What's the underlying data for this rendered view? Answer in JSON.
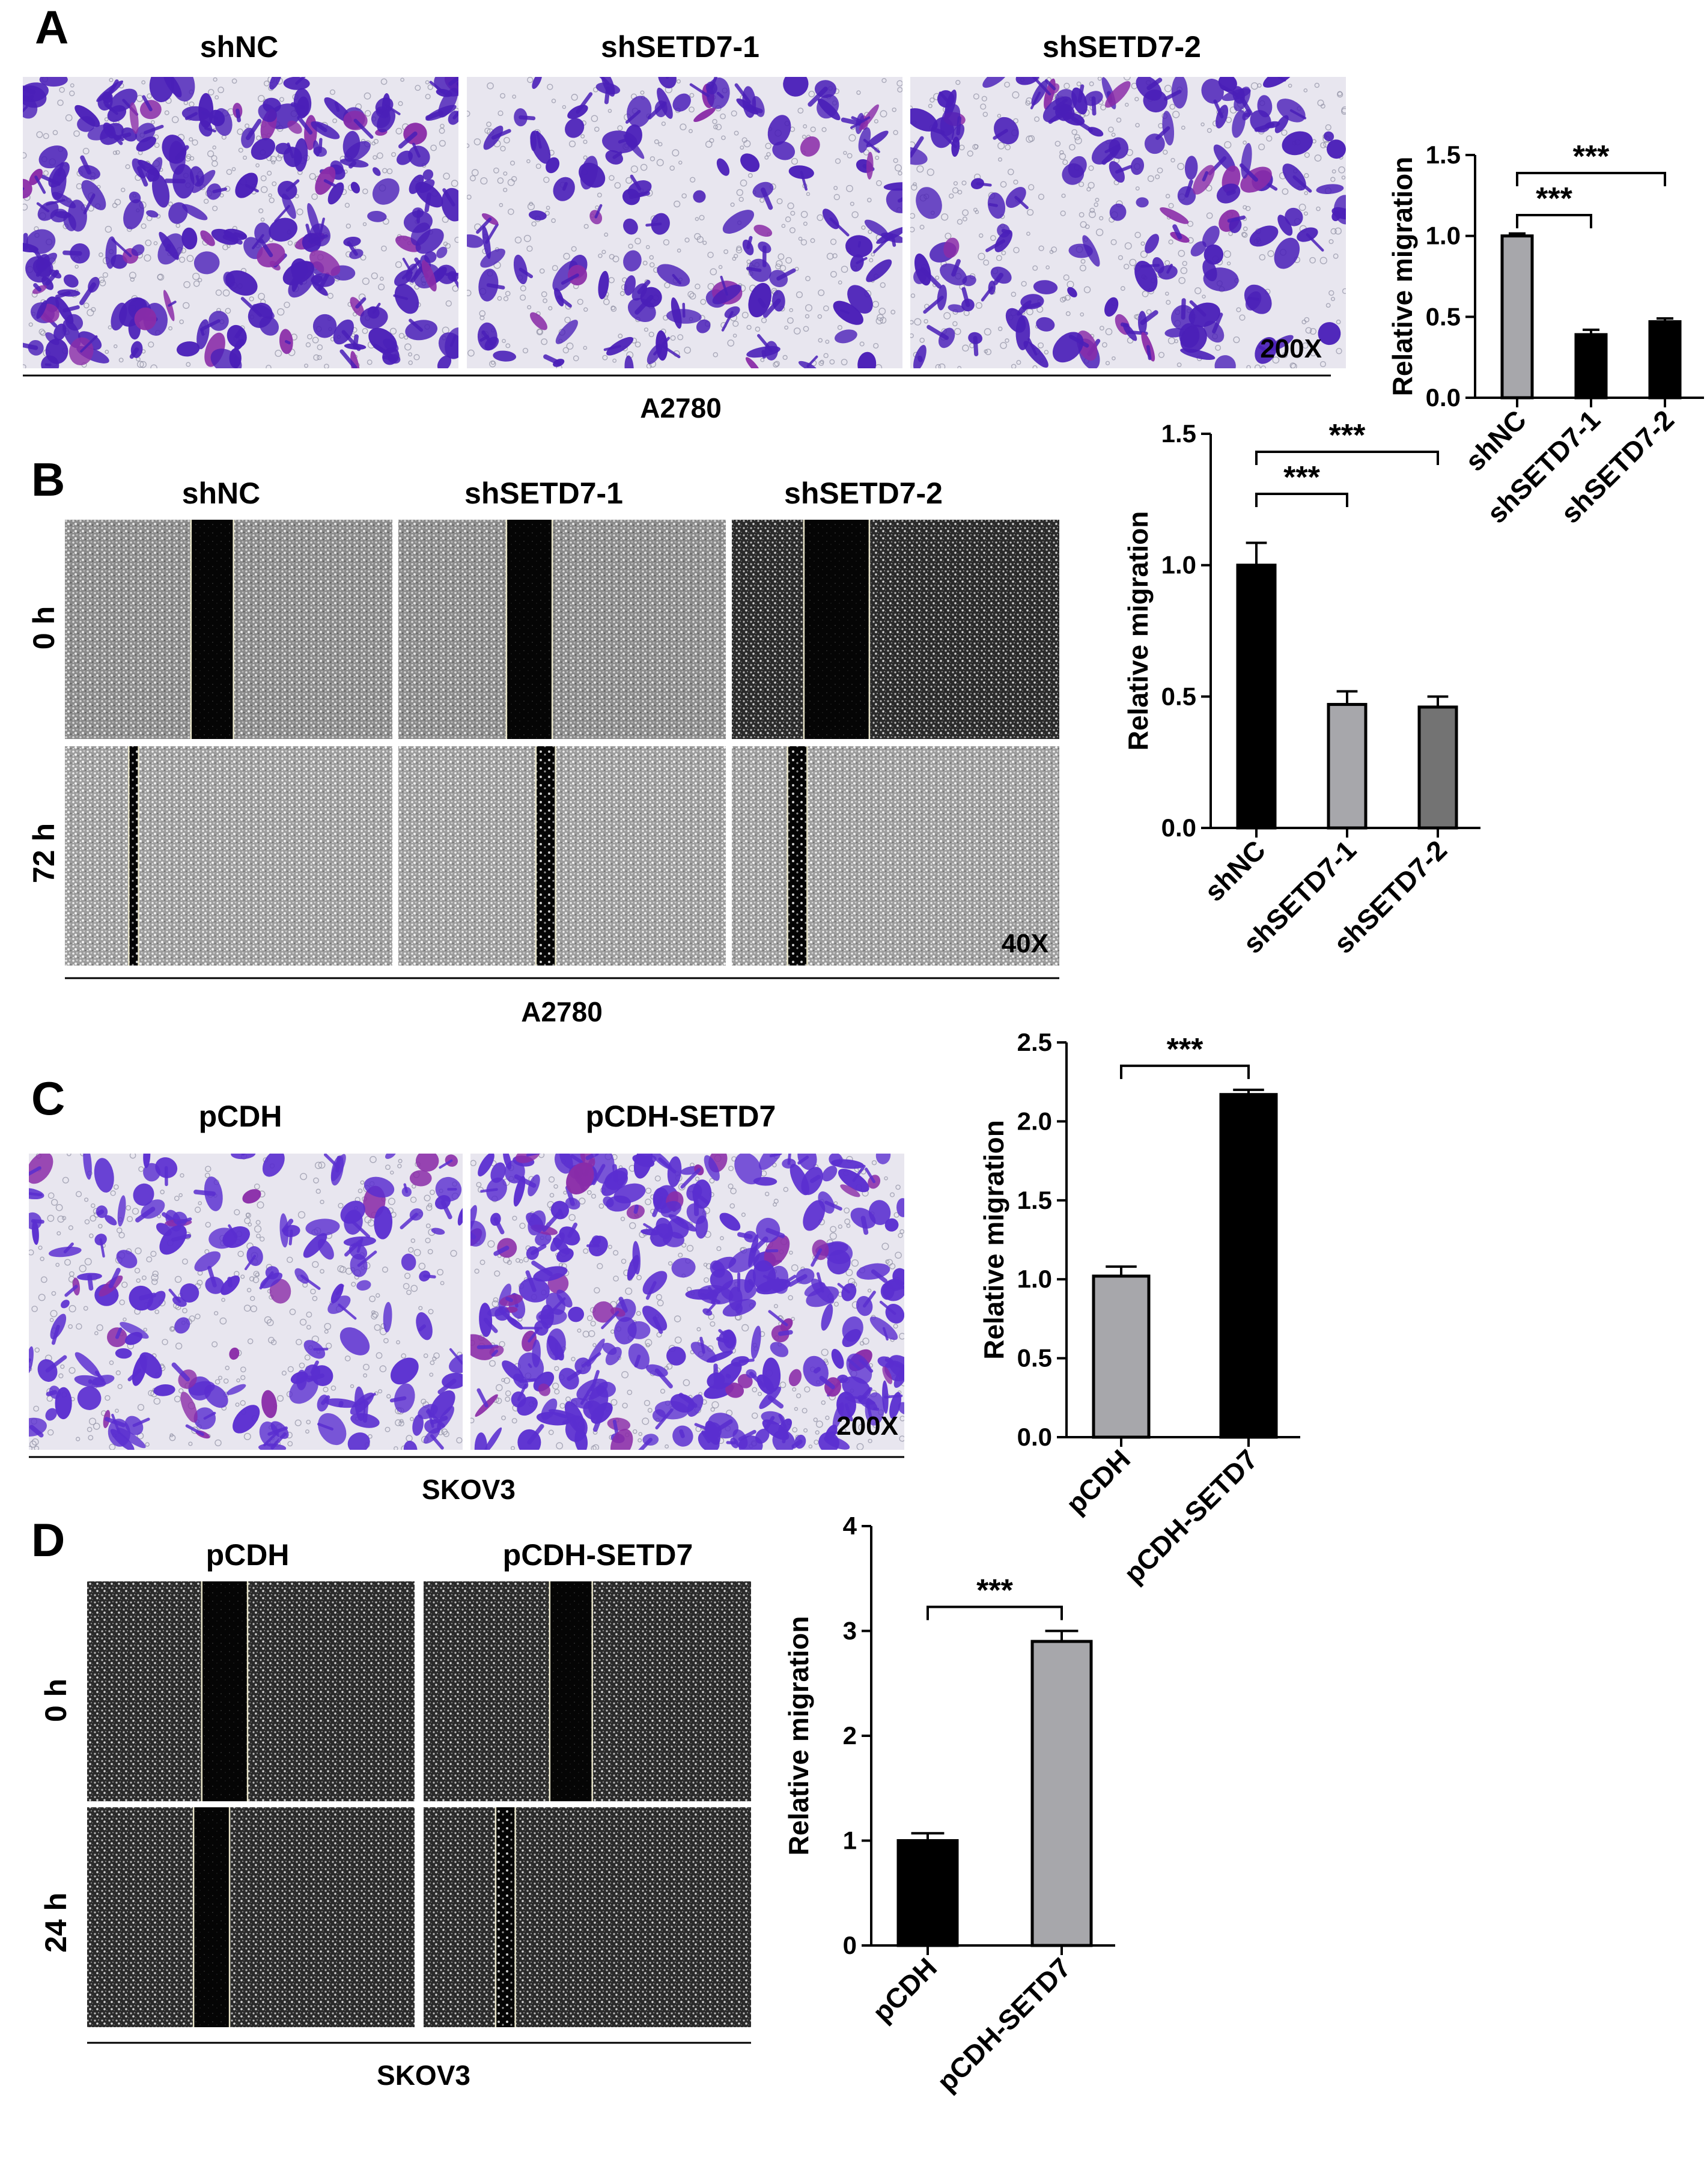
{
  "figure": {
    "panels": [
      {
        "letter": "A",
        "assay": "transwell",
        "conditions": [
          "shNC",
          "shSETD7-1",
          "shSETD7-2"
        ],
        "cell_line": "A2780",
        "magnification": "200X",
        "stain_color": "#4a1fb8"
      },
      {
        "letter": "B",
        "assay": "wound-healing",
        "conditions": [
          "shNC",
          "shSETD7-1",
          "shSETD7-2"
        ],
        "time_points": [
          "0 h",
          "72 h"
        ],
        "cell_line": "A2780",
        "magnification": "40X"
      },
      {
        "letter": "C",
        "assay": "transwell",
        "conditions": [
          "pCDH",
          "pCDH-SETD7"
        ],
        "cell_line": "SKOV3",
        "magnification": "200X",
        "stain_color": "#5a2ed0"
      },
      {
        "letter": "D",
        "assay": "wound-healing",
        "conditions": [
          "pCDH",
          "pCDH-SETD7"
        ],
        "time_points": [
          "0 h",
          "24 h"
        ],
        "cell_line": "SKOV3"
      }
    ]
  },
  "chart_data": [
    {
      "panel": "A",
      "type": "bar",
      "categories": [
        "shNC",
        "shSETD7-1",
        "shSETD7-2"
      ],
      "values": [
        1.0,
        0.39,
        0.47
      ],
      "errors": [
        0.015,
        0.03,
        0.02
      ],
      "bar_colors": [
        "#a7a7ab",
        "#000000",
        "#000000"
      ],
      "ylabel": "Relative migration",
      "ylim": [
        0,
        1.5
      ],
      "yticks": [
        "0.0",
        "0.5",
        "1.0",
        "1.5"
      ],
      "significance": [
        {
          "from": "shNC",
          "to": "shSETD7-1",
          "label": "***"
        },
        {
          "from": "shNC",
          "to": "shSETD7-2",
          "label": "***"
        }
      ]
    },
    {
      "panel": "B",
      "type": "bar",
      "categories": [
        "shNC",
        "shSETD7-1",
        "shSETD7-2"
      ],
      "values": [
        1.0,
        0.47,
        0.46
      ],
      "errors": [
        0.085,
        0.05,
        0.04
      ],
      "bar_colors": [
        "#000000",
        "#a7a7ab",
        "#737373"
      ],
      "ylabel": "Relative migration",
      "ylim": [
        0,
        1.5
      ],
      "yticks": [
        "0.0",
        "0.5",
        "1.0",
        "1.5"
      ],
      "significance": [
        {
          "from": "shNC",
          "to": "shSETD7-1",
          "label": "***"
        },
        {
          "from": "shNC",
          "to": "shSETD7-2",
          "label": "***"
        }
      ]
    },
    {
      "panel": "C",
      "type": "bar",
      "categories": [
        "pCDH",
        "pCDH-SETD7"
      ],
      "values": [
        1.02,
        2.17
      ],
      "errors": [
        0.06,
        0.03
      ],
      "bar_colors": [
        "#a7a7ab",
        "#000000"
      ],
      "ylabel": "Relative migration",
      "ylim": [
        0,
        2.5
      ],
      "yticks": [
        "0.0",
        "0.5",
        "1.0",
        "1.5",
        "2.0",
        "2.5"
      ],
      "significance": [
        {
          "from": "pCDH",
          "to": "pCDH-SETD7",
          "label": "***"
        }
      ]
    },
    {
      "panel": "D",
      "type": "bar",
      "categories": [
        "pCDH",
        "pCDH-SETD7"
      ],
      "values": [
        1.0,
        2.9
      ],
      "errors": [
        0.07,
        0.1
      ],
      "bar_colors": [
        "#000000",
        "#a7a7ab"
      ],
      "ylabel": "Relative migration",
      "ylim": [
        0,
        4
      ],
      "yticks": [
        "0",
        "1",
        "2",
        "3",
        "4"
      ],
      "significance": [
        {
          "from": "pCDH",
          "to": "pCDH-SETD7",
          "label": "***"
        }
      ]
    }
  ]
}
